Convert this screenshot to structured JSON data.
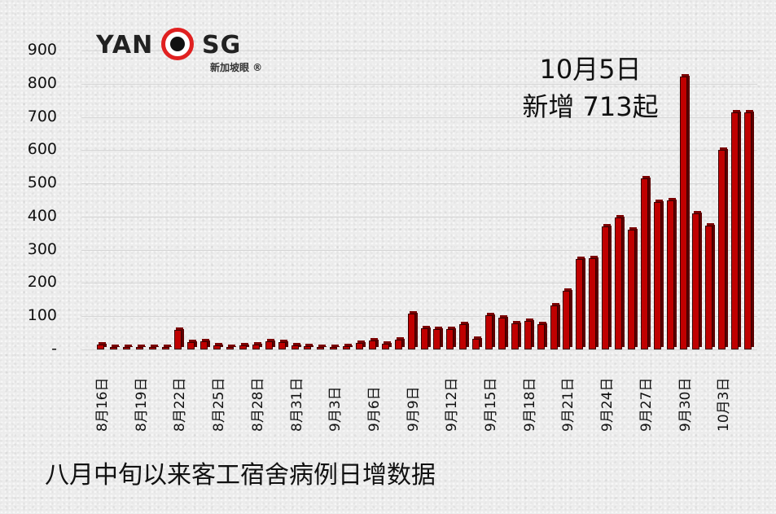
{
  "logo": {
    "left": "YAN",
    "right": "SG",
    "subtitle": "新加坡眼 ®"
  },
  "annotation": {
    "line1": "10月5日",
    "line2": "新增 713起"
  },
  "caption": "八月中旬以来客工宿舍病例日增数据",
  "colors": {
    "bar": "#c00000",
    "bar_edge": "#3a0000",
    "logo_red": "#e02020"
  },
  "chart_data": {
    "type": "bar",
    "title": "八月中旬以来客工宿舍病例日增数据",
    "xlabel": "",
    "ylabel": "",
    "ylim": [
      0,
      900
    ],
    "yticks": [
      "-",
      "100",
      "200",
      "300",
      "400",
      "500",
      "600",
      "700",
      "800",
      "900"
    ],
    "grid": true,
    "legend": null,
    "annotation": "10月5日 新增 713起",
    "xtick_labels": [
      "8月16日",
      "8月19日",
      "8月22日",
      "8月25日",
      "8月28日",
      "8月31日",
      "9月3日",
      "9月6日",
      "9月9日",
      "9月12日",
      "9月15日",
      "9月18日",
      "9月21日",
      "9月24日",
      "9月27日",
      "9月30日",
      "10月3日"
    ],
    "categories": [
      "8月16日",
      "8月17日",
      "8月18日",
      "8月19日",
      "8月20日",
      "8月21日",
      "8月22日",
      "8月23日",
      "8月24日",
      "8月25日",
      "8月26日",
      "8月27日",
      "8月28日",
      "8月29日",
      "8月30日",
      "8月31日",
      "9月1日",
      "9月2日",
      "9月3日",
      "9月4日",
      "9月5日",
      "9月6日",
      "9月7日",
      "9月8日",
      "9月9日",
      "9月10日",
      "9月11日",
      "9月12日",
      "9月13日",
      "9月14日",
      "9月15日",
      "9月16日",
      "9月17日",
      "9月18日",
      "9月19日",
      "9月20日",
      "9月21日",
      "9月22日",
      "9月23日",
      "9月24日",
      "9月25日",
      "9月26日",
      "9月27日",
      "9月28日",
      "9月29日",
      "9月30日",
      "10月1日",
      "10月2日",
      "10月3日",
      "10月4日",
      "10月5日"
    ],
    "values": [
      15,
      2,
      3,
      3,
      2,
      4,
      58,
      22,
      25,
      13,
      8,
      13,
      14,
      24,
      22,
      13,
      11,
      6,
      6,
      11,
      19,
      26,
      17,
      30,
      107,
      63,
      61,
      61,
      75,
      33,
      102,
      95,
      79,
      87,
      77,
      133,
      177,
      272,
      275,
      370,
      398,
      361,
      514,
      445,
      450,
      822,
      410,
      372,
      602,
      713,
      713
    ]
  }
}
